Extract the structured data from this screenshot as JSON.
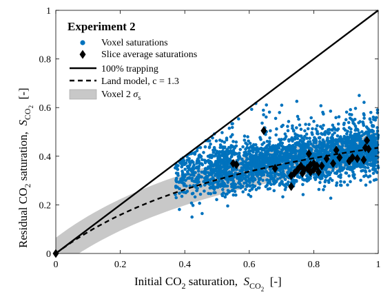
{
  "chart_data": {
    "type": "scatter",
    "title": "Experiment 2",
    "xlabel": {
      "prefix": "Initial CO",
      "sub": "2",
      "mid": " saturation,  ",
      "sym": "S",
      "symsub": "CO",
      "symsub2": "2",
      "suffix": "  [-]"
    },
    "ylabel": {
      "prefix": "Residual CO",
      "sub": "2",
      "mid": " saturation,  ",
      "sym": "S",
      "symsub": "CO",
      "symsub2": "2",
      "suffix": "  [-]"
    },
    "xlim": [
      0,
      1
    ],
    "ylim": [
      0,
      1
    ],
    "xticks": [
      "0",
      "0.2",
      "0.4",
      "0.6",
      "0.8",
      "1"
    ],
    "yticks": [
      "0",
      "0.2",
      "0.4",
      "0.6",
      "0.8",
      "1"
    ],
    "grid": false,
    "legend_position": "top-left",
    "colors": {
      "voxel": "#0072BD",
      "slice": "#000000",
      "band": "#c8c8c8"
    },
    "legend": {
      "voxel": "Voxel saturations",
      "slice": "Slice average saturations",
      "trapping": "100% trapping",
      "land": "Land model, c = 1.3",
      "band_prefix": "Voxel 2 ",
      "band_sym": "σ",
      "band_sub": "s"
    },
    "land_model": {
      "c": 1.3
    },
    "voxel_cloud": {
      "count": 2600,
      "x_range": [
        0.37,
        1.0
      ],
      "center_line": {
        "at_x_0_45": 0.33,
        "at_x_1_0": 0.43
      },
      "core_spread": 0.045,
      "outlier_y_max": 0.69
    },
    "slice_averages": [
      {
        "x": 0,
        "y": 0
      },
      {
        "x": 0.55,
        "y": 0.37
      },
      {
        "x": 0.56,
        "y": 0.365
      },
      {
        "x": 0.645,
        "y": 0.505
      },
      {
        "x": 0.68,
        "y": 0.35
      },
      {
        "x": 0.73,
        "y": 0.275
      },
      {
        "x": 0.73,
        "y": 0.32
      },
      {
        "x": 0.74,
        "y": 0.33
      },
      {
        "x": 0.75,
        "y": 0.345
      },
      {
        "x": 0.76,
        "y": 0.36
      },
      {
        "x": 0.765,
        "y": 0.33
      },
      {
        "x": 0.77,
        "y": 0.345
      },
      {
        "x": 0.78,
        "y": 0.35
      },
      {
        "x": 0.785,
        "y": 0.41
      },
      {
        "x": 0.79,
        "y": 0.365
      },
      {
        "x": 0.79,
        "y": 0.335
      },
      {
        "x": 0.8,
        "y": 0.37
      },
      {
        "x": 0.8,
        "y": 0.345
      },
      {
        "x": 0.81,
        "y": 0.36
      },
      {
        "x": 0.815,
        "y": 0.335
      },
      {
        "x": 0.825,
        "y": 0.36
      },
      {
        "x": 0.84,
        "y": 0.39
      },
      {
        "x": 0.86,
        "y": 0.37
      },
      {
        "x": 0.87,
        "y": 0.425
      },
      {
        "x": 0.88,
        "y": 0.395
      },
      {
        "x": 0.91,
        "y": 0.38
      },
      {
        "x": 0.92,
        "y": 0.395
      },
      {
        "x": 0.935,
        "y": 0.39
      },
      {
        "x": 0.955,
        "y": 0.385
      },
      {
        "x": 0.96,
        "y": 0.435
      },
      {
        "x": 0.965,
        "y": 0.465
      },
      {
        "x": 0.97,
        "y": 0.43
      }
    ]
  }
}
